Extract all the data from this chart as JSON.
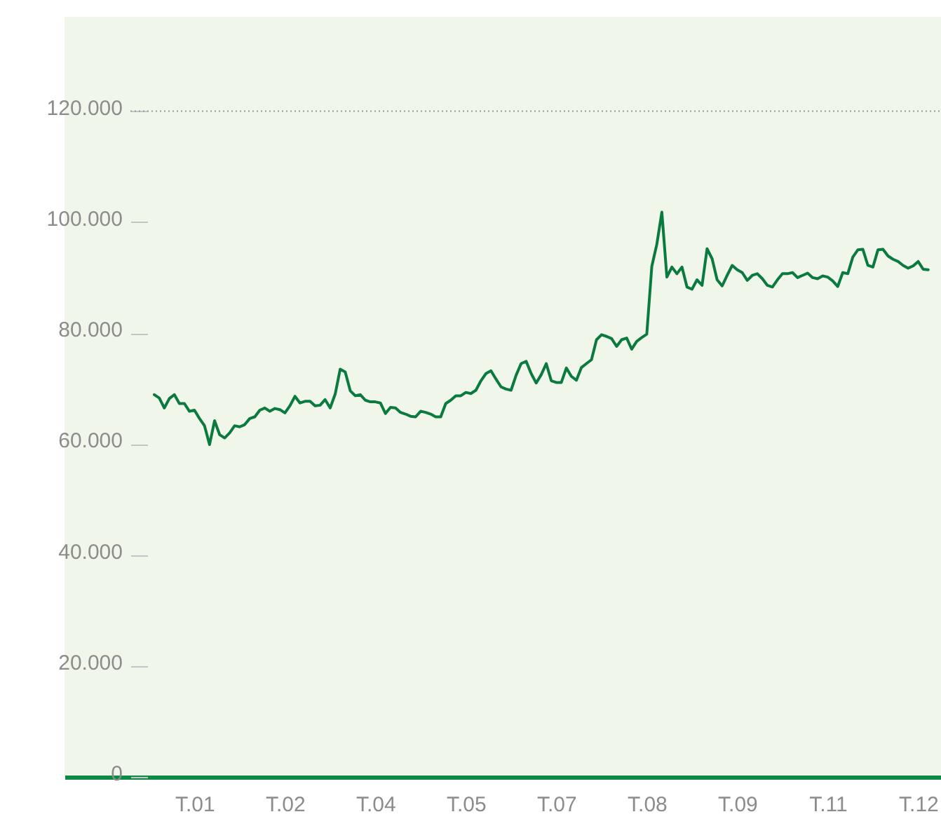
{
  "chart_data": {
    "type": "line",
    "categories": [
      null,
      null,
      null,
      null,
      null,
      null,
      null,
      null,
      "T.01",
      null,
      null,
      null,
      null,
      null,
      null,
      null,
      null,
      null,
      null,
      null,
      null,
      null,
      null,
      null,
      null,
      null,
      "T.02",
      null,
      null,
      null,
      null,
      null,
      null,
      null,
      null,
      null,
      null,
      null,
      null,
      null,
      null,
      null,
      null,
      null,
      "T.04",
      null,
      null,
      null,
      null,
      null,
      null,
      null,
      null,
      null,
      null,
      null,
      null,
      null,
      null,
      null,
      null,
      null,
      "T.05",
      null,
      null,
      null,
      null,
      null,
      null,
      null,
      null,
      null,
      null,
      null,
      null,
      null,
      null,
      null,
      null,
      null,
      "T.07",
      null,
      null,
      null,
      null,
      null,
      null,
      null,
      null,
      null,
      null,
      null,
      null,
      null,
      null,
      null,
      null,
      null,
      "T.08",
      null,
      null,
      null,
      null,
      null,
      null,
      null,
      null,
      null,
      null,
      null,
      null,
      null,
      null,
      null,
      null,
      null,
      "T.09",
      null,
      null,
      null,
      null,
      null,
      null,
      null,
      null,
      null,
      null,
      null,
      null,
      null,
      null,
      null,
      null,
      null,
      "T.11",
      null,
      null,
      null,
      null,
      null,
      null,
      null,
      null,
      null,
      null,
      null,
      null,
      null,
      null,
      null,
      null,
      null,
      "T.12",
      null,
      null
    ],
    "series": [
      {
        "color": "#0b7a3e",
        "values": [
          68900,
          68300,
          66500,
          68200,
          68900,
          67300,
          67300,
          65900,
          66100,
          64600,
          63300,
          59900,
          64200,
          61700,
          61100,
          62000,
          63300,
          63100,
          63500,
          64600,
          64900,
          66100,
          66500,
          65900,
          66400,
          66200,
          65600,
          66900,
          68600,
          67400,
          67700,
          67700,
          66900,
          67000,
          68000,
          66500,
          69000,
          73500,
          73000,
          69600,
          68700,
          68900,
          67900,
          67600,
          67600,
          67400,
          65500,
          66600,
          66500,
          65700,
          65400,
          65000,
          64900,
          65900,
          65700,
          65400,
          64900,
          64900,
          67300,
          67900,
          68700,
          68700,
          69300,
          69100,
          69700,
          71400,
          72700,
          73200,
          71700,
          70300,
          69900,
          69700,
          72400,
          74500,
          74900,
          72700,
          71000,
          72500,
          74500,
          71400,
          71100,
          71100,
          73700,
          72200,
          71500,
          73800,
          74500,
          75200,
          78800,
          79700,
          79400,
          79000,
          77600,
          78800,
          79100,
          77100,
          78500,
          79200,
          79800,
          92000,
          96000,
          101800,
          90100,
          91900,
          90700,
          91900,
          88300,
          87900,
          89600,
          88600,
          95200,
          93400,
          89600,
          88500,
          90400,
          92200,
          91400,
          90900,
          89500,
          90400,
          90700,
          89800,
          88600,
          88300,
          89600,
          90700,
          90700,
          90900,
          90000,
          90400,
          90800,
          90000,
          89800,
          90300,
          90100,
          89400,
          88400,
          90900,
          90700,
          93700,
          95000,
          95100,
          92200,
          91900,
          95000,
          95100,
          93900,
          93300,
          92900,
          92200,
          91700,
          92100,
          92900,
          91500,
          91400
        ]
      }
    ],
    "ylim": [
      0,
      137000
    ],
    "yticks": [
      0,
      {
        "value": 20000,
        "label": "20.000"
      },
      {
        "value": 40000,
        "label": "40.000"
      },
      {
        "value": 60000,
        "label": "60.000"
      },
      {
        "value": 80000,
        "label": "80.000"
      },
      {
        "value": 100000,
        "label": "100.000"
      },
      {
        "value": 120000,
        "label": "120.000"
      }
    ],
    "ref_lines": [
      {
        "axis": "y",
        "value": 120000,
        "color": "#9a9a9a",
        "line_style": "dotted"
      }
    ],
    "line_style": "solid"
  }
}
